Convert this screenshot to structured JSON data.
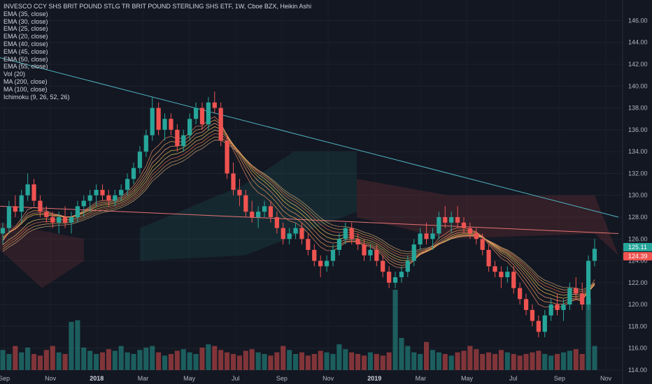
{
  "header": {
    "title": "INVESCO CCY SHS BRIT POUND STLG TR BRIT POUND STERLING SHS ETF, 1W, Cboe BZX, Heikin Ashi",
    "indicators": [
      "EMA (35, close)",
      "EMA (30, close)",
      "EMA (25, close)",
      "EMA (20, close)",
      "EMA (40, close)",
      "EMA (45, close)",
      "EMA (50, close)",
      "EMA (55, close)",
      "Vol (20)",
      "MA (200, close)",
      "MA (100, close)",
      "Ichimoku (9, 26, 52, 26)"
    ]
  },
  "price_labels": {
    "last": "125.11",
    "last_color": "#26a69a",
    "second": "124.39",
    "second_color": "#ef5350"
  },
  "chart_data": {
    "type": "candlestick",
    "yticks": [
      "146.00",
      "144.00",
      "142.00",
      "140.00",
      "138.00",
      "136.00",
      "134.00",
      "132.00",
      "130.00",
      "128.00",
      "126.00",
      "124.00",
      "122.00",
      "120.00",
      "118.00",
      "116.00",
      "114.00"
    ],
    "ylim": [
      114,
      147.5
    ],
    "xticks": [
      "Sep",
      "Nov",
      "2018",
      "Mar",
      "May",
      "Jul",
      "Sep",
      "Nov",
      "2019",
      "Mar",
      "May",
      "Jul",
      "Sep",
      "Nov"
    ],
    "bold_xticks": [
      "2018",
      "2019"
    ],
    "candles": [
      [
        126.5,
        127.5,
        125.5,
        127.0
      ],
      [
        127.0,
        129.5,
        126.5,
        129.0
      ],
      [
        129.0,
        130.0,
        128.0,
        128.5
      ],
      [
        128.5,
        130.5,
        127.5,
        130.0
      ],
      [
        130.0,
        132.0,
        129.5,
        131.0
      ],
      [
        131.0,
        131.5,
        129.0,
        129.5
      ],
      [
        129.5,
        130.0,
        128.0,
        128.5
      ],
      [
        128.5,
        129.0,
        127.5,
        128.0
      ],
      [
        128.0,
        128.5,
        127.0,
        127.5
      ],
      [
        127.5,
        128.5,
        126.5,
        128.0
      ],
      [
        128.0,
        129.0,
        127.0,
        127.5
      ],
      [
        127.5,
        128.5,
        126.5,
        128.0
      ],
      [
        128.0,
        129.5,
        127.5,
        129.0
      ],
      [
        129.0,
        130.0,
        128.0,
        129.5
      ],
      [
        129.5,
        130.5,
        128.5,
        130.0
      ],
      [
        130.0,
        131.0,
        129.0,
        130.5
      ],
      [
        130.5,
        131.0,
        129.5,
        130.0
      ],
      [
        130.0,
        130.5,
        129.0,
        129.5
      ],
      [
        129.5,
        130.5,
        129.0,
        130.0
      ],
      [
        130.0,
        131.0,
        129.5,
        130.5
      ],
      [
        130.5,
        132.0,
        130.0,
        131.5
      ],
      [
        131.5,
        133.0,
        131.0,
        132.5
      ],
      [
        132.5,
        134.5,
        132.0,
        134.0
      ],
      [
        134.0,
        136.0,
        133.5,
        135.5
      ],
      [
        135.5,
        139.0,
        135.0,
        138.0
      ],
      [
        138.0,
        138.5,
        135.5,
        136.0
      ],
      [
        136.0,
        137.5,
        135.0,
        137.0
      ],
      [
        137.0,
        137.5,
        135.5,
        136.0
      ],
      [
        136.0,
        136.5,
        134.0,
        134.5
      ],
      [
        134.5,
        136.0,
        134.0,
        135.5
      ],
      [
        135.5,
        137.5,
        135.0,
        137.0
      ],
      [
        137.0,
        138.5,
        136.5,
        138.0
      ],
      [
        138.0,
        138.5,
        136.0,
        136.5
      ],
      [
        136.5,
        139.0,
        136.0,
        138.5
      ],
      [
        138.5,
        139.5,
        137.5,
        138.0
      ],
      [
        138.0,
        138.5,
        134.5,
        135.0
      ],
      [
        135.0,
        135.5,
        131.5,
        132.0
      ],
      [
        132.0,
        133.0,
        130.0,
        130.5
      ],
      [
        130.5,
        131.5,
        129.0,
        130.0
      ],
      [
        130.0,
        130.5,
        128.0,
        128.5
      ],
      [
        128.5,
        129.5,
        127.5,
        128.0
      ],
      [
        128.0,
        129.0,
        127.0,
        128.5
      ],
      [
        128.5,
        129.5,
        128.0,
        129.0
      ],
      [
        129.0,
        129.5,
        127.5,
        128.0
      ],
      [
        128.0,
        128.5,
        126.5,
        127.0
      ],
      [
        127.0,
        127.5,
        125.5,
        126.0
      ],
      [
        126.0,
        127.0,
        125.5,
        126.5
      ],
      [
        126.5,
        127.5,
        126.0,
        127.0
      ],
      [
        127.0,
        127.5,
        125.5,
        126.0
      ],
      [
        126.0,
        126.5,
        124.5,
        125.0
      ],
      [
        125.0,
        125.5,
        123.5,
        124.0
      ],
      [
        124.0,
        124.5,
        122.5,
        123.5
      ],
      [
        123.5,
        124.5,
        123.0,
        124.0
      ],
      [
        124.0,
        125.5,
        123.5,
        125.0
      ],
      [
        125.0,
        126.5,
        124.5,
        126.0
      ],
      [
        126.0,
        127.5,
        125.5,
        127.0
      ],
      [
        127.0,
        127.5,
        125.5,
        126.0
      ],
      [
        126.0,
        126.5,
        125.0,
        125.5
      ],
      [
        125.5,
        126.0,
        124.0,
        124.5
      ],
      [
        124.5,
        125.5,
        124.0,
        125.0
      ],
      [
        125.0,
        125.5,
        123.5,
        124.0
      ],
      [
        124.0,
        124.5,
        122.5,
        123.0
      ],
      [
        123.0,
        123.5,
        121.5,
        122.0
      ],
      [
        122.0,
        123.0,
        121.5,
        122.5
      ],
      [
        122.5,
        123.5,
        122.0,
        123.0
      ],
      [
        123.0,
        124.5,
        122.5,
        124.0
      ],
      [
        124.0,
        126.0,
        123.5,
        125.5
      ],
      [
        125.5,
        127.0,
        125.0,
        126.5
      ],
      [
        126.5,
        127.5,
        125.5,
        126.0
      ],
      [
        126.0,
        127.0,
        125.0,
        126.5
      ],
      [
        126.5,
        128.5,
        126.0,
        128.0
      ],
      [
        128.0,
        129.0,
        127.0,
        127.5
      ],
      [
        127.5,
        128.5,
        126.5,
        128.0
      ],
      [
        128.0,
        129.0,
        127.0,
        127.5
      ],
      [
        127.5,
        128.0,
        126.5,
        127.0
      ],
      [
        127.0,
        127.5,
        126.0,
        126.5
      ],
      [
        126.5,
        127.0,
        125.5,
        126.0
      ],
      [
        126.0,
        126.5,
        124.5,
        125.0
      ],
      [
        125.0,
        125.5,
        123.0,
        123.5
      ],
      [
        123.5,
        124.0,
        122.5,
        123.0
      ],
      [
        123.0,
        123.5,
        121.5,
        122.5
      ],
      [
        122.5,
        123.5,
        122.0,
        123.0
      ],
      [
        123.0,
        123.5,
        121.0,
        121.5
      ],
      [
        121.5,
        122.0,
        120.0,
        120.5
      ],
      [
        120.5,
        121.0,
        119.0,
        119.5
      ],
      [
        119.5,
        120.0,
        118.0,
        118.5
      ],
      [
        118.5,
        119.0,
        117.0,
        117.5
      ],
      [
        117.5,
        119.5,
        117.0,
        119.0
      ],
      [
        119.0,
        120.5,
        118.5,
        120.0
      ],
      [
        120.0,
        121.0,
        119.0,
        119.5
      ],
      [
        119.5,
        120.5,
        118.5,
        120.0
      ],
      [
        120.0,
        122.0,
        119.5,
        121.5
      ],
      [
        121.5,
        122.5,
        120.5,
        121.0
      ],
      [
        121.0,
        122.0,
        119.5,
        120.0
      ],
      [
        120.0,
        124.5,
        119.5,
        124.0
      ],
      [
        124.0,
        126.0,
        123.5,
        125.1
      ]
    ],
    "volume": [
      0.25,
      0.2,
      0.3,
      0.22,
      0.28,
      0.2,
      0.18,
      0.25,
      0.3,
      0.22,
      0.2,
      0.6,
      0.62,
      0.28,
      0.24,
      0.2,
      0.22,
      0.26,
      0.24,
      0.3,
      0.22,
      0.2,
      0.25,
      0.28,
      0.3,
      0.22,
      0.18,
      0.2,
      0.24,
      0.26,
      0.22,
      0.2,
      0.28,
      0.32,
      0.3,
      0.25,
      0.22,
      0.2,
      0.18,
      0.24,
      0.26,
      0.22,
      0.2,
      0.18,
      0.22,
      0.3,
      0.25,
      0.2,
      0.22,
      0.18,
      0.2,
      0.24,
      0.22,
      0.2,
      0.32,
      0.26,
      0.22,
      0.2,
      0.18,
      0.22,
      0.2,
      0.18,
      0.22,
      1.0,
      0.4,
      0.3,
      0.22,
      0.2,
      0.35,
      0.25,
      0.22,
      0.2,
      0.18,
      0.22,
      0.24,
      0.3,
      0.26,
      0.2,
      0.22,
      0.2,
      0.25,
      0.22,
      0.2,
      0.18,
      0.2,
      0.22,
      0.24,
      0.2,
      0.18,
      0.2,
      0.22,
      0.24,
      0.26,
      0.2,
      0.9,
      0.3
    ],
    "ma200": [
      [
        0,
        142.6
      ],
      [
        1,
        128.0
      ]
    ],
    "ma100": [
      [
        0,
        129.0
      ],
      [
        1,
        126.5
      ]
    ],
    "ma200_color": "#4fb3bf",
    "ma100_color": "#e57373",
    "up_color": "#26a69a",
    "down_color": "#ef5350",
    "background": "#131722"
  }
}
